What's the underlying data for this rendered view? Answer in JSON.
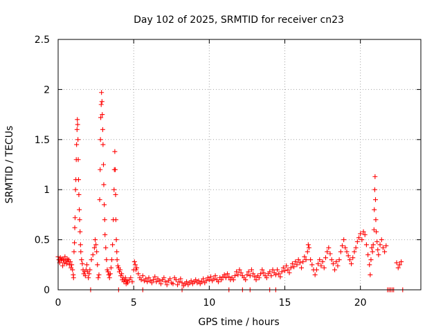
{
  "chart_data": {
    "type": "scatter",
    "title": "Day 102 of 2025, SRMTID for receiver cn23",
    "xlabel": "GPS time / hours",
    "ylabel": "SRMTID / TECUs",
    "xlim": [
      0,
      24
    ],
    "ylim": [
      0,
      2.5
    ],
    "x_ticks": [
      0,
      5,
      10,
      15,
      20
    ],
    "x_tick_labels": [
      "0",
      "5",
      "10",
      "15",
      "20"
    ],
    "y_ticks": [
      0,
      0.5,
      1,
      1.5,
      2,
      2.5
    ],
    "y_tick_labels": [
      "0",
      "0.5",
      "1",
      "1.5",
      "2",
      "2.5"
    ],
    "grid": true,
    "marker": "+",
    "color": "#ff0000",
    "series": [
      {
        "name": "SRMTID",
        "points": [
          [
            0.0,
            0.33
          ],
          [
            0.05,
            0.3
          ],
          [
            0.1,
            0.27
          ],
          [
            0.15,
            0.32
          ],
          [
            0.2,
            0.29
          ],
          [
            0.25,
            0.31
          ],
          [
            0.3,
            0.24
          ],
          [
            0.35,
            0.3
          ],
          [
            0.4,
            0.27
          ],
          [
            0.45,
            0.33
          ],
          [
            0.5,
            0.29
          ],
          [
            0.55,
            0.26
          ],
          [
            0.6,
            0.31
          ],
          [
            0.65,
            0.28
          ],
          [
            0.7,
            0.3
          ],
          [
            0.75,
            0.25
          ],
          [
            0.8,
            0.28
          ],
          [
            0.85,
            0.22
          ],
          [
            0.9,
            0.25
          ],
          [
            0.95,
            0.2
          ],
          [
            1.0,
            0.15
          ],
          [
            1.02,
            0.12
          ],
          [
            1.05,
            0.38
          ],
          [
            1.08,
            0.47
          ],
          [
            1.1,
            0.62
          ],
          [
            1.12,
            0.72
          ],
          [
            1.15,
            1.0
          ],
          [
            1.17,
            1.1
          ],
          [
            1.2,
            1.3
          ],
          [
            1.22,
            1.45
          ],
          [
            1.25,
            1.6
          ],
          [
            1.27,
            1.7
          ],
          [
            1.29,
            1.65
          ],
          [
            1.31,
            1.5
          ],
          [
            1.33,
            1.3
          ],
          [
            1.35,
            1.1
          ],
          [
            1.37,
            0.95
          ],
          [
            1.4,
            0.8
          ],
          [
            1.42,
            0.7
          ],
          [
            1.45,
            0.58
          ],
          [
            1.48,
            0.45
          ],
          [
            1.5,
            0.38
          ],
          [
            1.55,
            0.3
          ],
          [
            1.6,
            0.26
          ],
          [
            1.65,
            0.2
          ],
          [
            1.7,
            0.16
          ],
          [
            1.75,
            0.18
          ],
          [
            1.8,
            0.14
          ],
          [
            1.85,
            0.2
          ],
          [
            1.9,
            0.25
          ],
          [
            1.95,
            0.18
          ],
          [
            2.0,
            0.12
          ],
          [
            2.05,
            0.16
          ],
          [
            2.1,
            0.2
          ],
          [
            2.2,
            0.3
          ],
          [
            2.3,
            0.35
          ],
          [
            2.4,
            0.42
          ],
          [
            2.45,
            0.5
          ],
          [
            2.5,
            0.45
          ],
          [
            2.55,
            0.38
          ],
          [
            2.6,
            0.25
          ],
          [
            2.65,
            0.12
          ],
          [
            2.7,
            0.15
          ],
          [
            2.75,
            0.9
          ],
          [
            2.78,
            1.2
          ],
          [
            2.8,
            1.5
          ],
          [
            2.82,
            1.72
          ],
          [
            2.85,
            1.85
          ],
          [
            2.87,
            1.97
          ],
          [
            2.9,
            1.88
          ],
          [
            2.92,
            1.75
          ],
          [
            2.95,
            1.6
          ],
          [
            2.97,
            1.45
          ],
          [
            3.0,
            1.25
          ],
          [
            3.02,
            1.05
          ],
          [
            3.05,
            0.85
          ],
          [
            3.08,
            0.7
          ],
          [
            3.1,
            0.55
          ],
          [
            3.15,
            0.42
          ],
          [
            3.2,
            0.3
          ],
          [
            3.25,
            0.2
          ],
          [
            3.3,
            0.18
          ],
          [
            3.35,
            0.15
          ],
          [
            3.4,
            0.12
          ],
          [
            3.45,
            0.16
          ],
          [
            3.5,
            0.22
          ],
          [
            3.55,
            0.3
          ],
          [
            3.6,
            0.45
          ],
          [
            3.65,
            0.7
          ],
          [
            3.7,
            1.0
          ],
          [
            3.72,
            1.2
          ],
          [
            3.75,
            1.38
          ],
          [
            3.78,
            1.2
          ],
          [
            3.8,
            0.95
          ],
          [
            3.82,
            0.7
          ],
          [
            3.85,
            0.5
          ],
          [
            3.88,
            0.38
          ],
          [
            3.9,
            0.3
          ],
          [
            3.95,
            0.24
          ],
          [
            4.0,
            0.22
          ],
          [
            4.05,
            0.18
          ],
          [
            4.1,
            0.2
          ],
          [
            4.15,
            0.14
          ],
          [
            4.2,
            0.16
          ],
          [
            4.25,
            0.1
          ],
          [
            4.3,
            0.12
          ],
          [
            4.35,
            0.08
          ],
          [
            4.4,
            0.1
          ],
          [
            4.45,
            0.12
          ],
          [
            4.5,
            0.06
          ],
          [
            4.55,
            0.09
          ],
          [
            4.6,
            0.07
          ],
          [
            4.7,
            0.1
          ],
          [
            4.8,
            0.12
          ],
          [
            4.9,
            0.08
          ],
          [
            5.0,
            0.2
          ],
          [
            5.05,
            0.28
          ],
          [
            5.1,
            0.25
          ],
          [
            5.15,
            0.2
          ],
          [
            5.2,
            0.22
          ],
          [
            5.3,
            0.16
          ],
          [
            5.4,
            0.12
          ],
          [
            5.5,
            0.1
          ],
          [
            5.6,
            0.14
          ],
          [
            5.7,
            0.09
          ],
          [
            5.8,
            0.11
          ],
          [
            5.9,
            0.08
          ],
          [
            6.0,
            0.12
          ],
          [
            6.1,
            0.09
          ],
          [
            6.2,
            0.07
          ],
          [
            6.3,
            0.1
          ],
          [
            6.4,
            0.13
          ],
          [
            6.5,
            0.08
          ],
          [
            6.6,
            0.11
          ],
          [
            6.7,
            0.09
          ],
          [
            6.8,
            0.06
          ],
          [
            6.9,
            0.1
          ],
          [
            7.0,
            0.12
          ],
          [
            7.1,
            0.08
          ],
          [
            7.2,
            0.05
          ],
          [
            7.3,
            0.09
          ],
          [
            7.4,
            0.11
          ],
          [
            7.5,
            0.07
          ],
          [
            7.6,
            0.06
          ],
          [
            7.7,
            0.12
          ],
          [
            7.8,
            0.1
          ],
          [
            7.9,
            0.05
          ],
          [
            8.0,
            0.08
          ],
          [
            8.1,
            0.11
          ],
          [
            8.2,
            0.07
          ],
          [
            8.3,
            0.04
          ],
          [
            8.4,
            0.06
          ],
          [
            8.5,
            0.08
          ],
          [
            8.6,
            0.05
          ],
          [
            8.7,
            0.07
          ],
          [
            8.8,
            0.09
          ],
          [
            8.9,
            0.06
          ],
          [
            9.0,
            0.08
          ],
          [
            9.1,
            0.1
          ],
          [
            9.2,
            0.07
          ],
          [
            9.3,
            0.09
          ],
          [
            9.4,
            0.06
          ],
          [
            9.5,
            0.08
          ],
          [
            9.6,
            0.11
          ],
          [
            9.7,
            0.07
          ],
          [
            9.8,
            0.09
          ],
          [
            9.9,
            0.12
          ],
          [
            10.0,
            0.1
          ],
          [
            10.1,
            0.13
          ],
          [
            10.2,
            0.09
          ],
          [
            10.3,
            0.11
          ],
          [
            10.4,
            0.14
          ],
          [
            10.5,
            0.1
          ],
          [
            10.6,
            0.08
          ],
          [
            10.7,
            0.12
          ],
          [
            10.8,
            0.1
          ],
          [
            10.9,
            0.13
          ],
          [
            11.0,
            0.15
          ],
          [
            11.1,
            0.12
          ],
          [
            11.2,
            0.16
          ],
          [
            11.3,
            0.13
          ],
          [
            11.4,
            0.1
          ],
          [
            11.5,
            0.12
          ],
          [
            11.6,
            0.1
          ],
          [
            11.7,
            0.14
          ],
          [
            11.8,
            0.18
          ],
          [
            11.9,
            0.15
          ],
          [
            12.0,
            0.2
          ],
          [
            12.1,
            0.17
          ],
          [
            12.2,
            0.14
          ],
          [
            12.3,
            0.12
          ],
          [
            12.4,
            0.1
          ],
          [
            12.5,
            0.15
          ],
          [
            12.6,
            0.18
          ],
          [
            12.7,
            0.14
          ],
          [
            12.8,
            0.2
          ],
          [
            12.9,
            0.16
          ],
          [
            13.0,
            0.13
          ],
          [
            13.1,
            0.1
          ],
          [
            13.2,
            0.14
          ],
          [
            13.3,
            0.12
          ],
          [
            13.4,
            0.16
          ],
          [
            13.5,
            0.2
          ],
          [
            13.6,
            0.17
          ],
          [
            13.7,
            0.14
          ],
          [
            13.8,
            0.12
          ],
          [
            13.9,
            0.16
          ],
          [
            14.0,
            0.18
          ],
          [
            14.1,
            0.14
          ],
          [
            14.2,
            0.2
          ],
          [
            14.3,
            0.17
          ],
          [
            14.4,
            0.15
          ],
          [
            14.5,
            0.2
          ],
          [
            14.6,
            0.16
          ],
          [
            14.7,
            0.13
          ],
          [
            14.8,
            0.18
          ],
          [
            14.9,
            0.22
          ],
          [
            15.0,
            0.19
          ],
          [
            15.1,
            0.24
          ],
          [
            15.2,
            0.2
          ],
          [
            15.3,
            0.17
          ],
          [
            15.4,
            0.22
          ],
          [
            15.5,
            0.26
          ],
          [
            15.6,
            0.23
          ],
          [
            15.7,
            0.28
          ],
          [
            15.8,
            0.25
          ],
          [
            15.9,
            0.3
          ],
          [
            16.0,
            0.27
          ],
          [
            16.1,
            0.22
          ],
          [
            16.2,
            0.28
          ],
          [
            16.3,
            0.33
          ],
          [
            16.4,
            0.3
          ],
          [
            16.5,
            0.38
          ],
          [
            16.55,
            0.45
          ],
          [
            16.6,
            0.42
          ],
          [
            16.7,
            0.3
          ],
          [
            16.8,
            0.25
          ],
          [
            16.9,
            0.2
          ],
          [
            17.0,
            0.15
          ],
          [
            17.1,
            0.2
          ],
          [
            17.2,
            0.26
          ],
          [
            17.3,
            0.3
          ],
          [
            17.4,
            0.24
          ],
          [
            17.5,
            0.28
          ],
          [
            17.6,
            0.22
          ],
          [
            17.7,
            0.32
          ],
          [
            17.8,
            0.38
          ],
          [
            17.9,
            0.42
          ],
          [
            18.0,
            0.36
          ],
          [
            18.1,
            0.3
          ],
          [
            18.2,
            0.26
          ],
          [
            18.3,
            0.2
          ],
          [
            18.4,
            0.28
          ],
          [
            18.5,
            0.24
          ],
          [
            18.6,
            0.3
          ],
          [
            18.7,
            0.38
          ],
          [
            18.8,
            0.44
          ],
          [
            18.9,
            0.5
          ],
          [
            19.0,
            0.42
          ],
          [
            19.1,
            0.38
          ],
          [
            19.2,
            0.34
          ],
          [
            19.3,
            0.3
          ],
          [
            19.4,
            0.26
          ],
          [
            19.5,
            0.32
          ],
          [
            19.6,
            0.38
          ],
          [
            19.7,
            0.42
          ],
          [
            19.8,
            0.48
          ],
          [
            19.9,
            0.52
          ],
          [
            20.0,
            0.56
          ],
          [
            20.1,
            0.5
          ],
          [
            20.2,
            0.58
          ],
          [
            20.3,
            0.55
          ],
          [
            20.4,
            0.45
          ],
          [
            20.5,
            0.35
          ],
          [
            20.6,
            0.25
          ],
          [
            20.65,
            0.15
          ],
          [
            20.7,
            0.3
          ],
          [
            20.75,
            0.42
          ],
          [
            20.8,
            0.38
          ],
          [
            20.85,
            0.45
          ],
          [
            20.9,
            0.6
          ],
          [
            20.92,
            0.8
          ],
          [
            20.95,
            1.0
          ],
          [
            20.97,
            1.13
          ],
          [
            21.0,
            0.9
          ],
          [
            21.02,
            0.7
          ],
          [
            21.05,
            0.58
          ],
          [
            21.1,
            0.48
          ],
          [
            21.15,
            0.4
          ],
          [
            21.2,
            0.35
          ],
          [
            21.3,
            0.45
          ],
          [
            21.4,
            0.5
          ],
          [
            21.5,
            0.42
          ],
          [
            21.6,
            0.38
          ],
          [
            21.7,
            0.44
          ],
          [
            21.8,
            0.0
          ],
          [
            21.9,
            0.0
          ],
          [
            22.0,
            0.0
          ],
          [
            22.1,
            0.0
          ],
          [
            22.2,
            0.0
          ],
          [
            22.4,
            0.27
          ],
          [
            22.5,
            0.22
          ],
          [
            22.6,
            0.25
          ],
          [
            22.7,
            0.28
          ],
          [
            22.8,
            0.0
          ],
          [
            2.15,
            0.0
          ],
          [
            4.0,
            0.0
          ],
          [
            5.6,
            0.0
          ],
          [
            8.2,
            0.0
          ],
          [
            11.3,
            0.0
          ],
          [
            12.2,
            0.0
          ],
          [
            12.7,
            0.0
          ],
          [
            14.0,
            0.0
          ],
          [
            14.4,
            0.0
          ]
        ]
      }
    ]
  }
}
